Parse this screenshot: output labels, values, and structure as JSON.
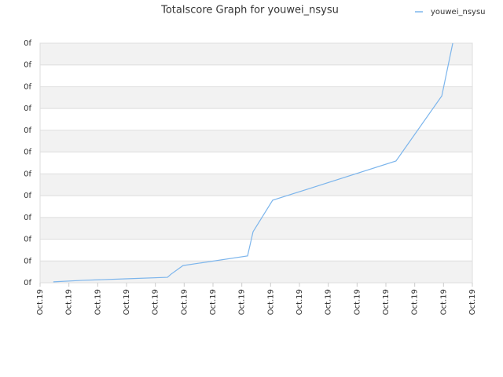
{
  "chart_data": {
    "type": "line",
    "title": "Totalscore Graph for youwei_nsysu",
    "legend_position": "top-right",
    "grid": true,
    "x": [
      0.46,
      1.47,
      2.97,
      4.42,
      4.55,
      4.96,
      7.2,
      7.39,
      8.07,
      12.35,
      13.94,
      14.32
    ],
    "series": [
      {
        "name": "youwei_nsysu",
        "color": "#7cb5ec",
        "values": [
          0.04,
          0.11,
          0.18,
          0.25,
          0.4,
          0.79,
          1.23,
          2.34,
          3.79,
          5.59,
          8.58,
          11.0
        ]
      }
    ],
    "xlim": [
      0,
      15
    ],
    "xticks": [
      {
        "value": 0,
        "label": "Oct.19"
      },
      {
        "value": 1,
        "label": "Oct.19"
      },
      {
        "value": 2,
        "label": "Oct.19"
      },
      {
        "value": 3,
        "label": "Oct.19"
      },
      {
        "value": 4,
        "label": "Oct.19"
      },
      {
        "value": 5,
        "label": "Oct.19"
      },
      {
        "value": 6,
        "label": "Oct.19"
      },
      {
        "value": 7,
        "label": "Oct.19"
      },
      {
        "value": 8,
        "label": "Oct.19"
      },
      {
        "value": 9,
        "label": "Oct.19"
      },
      {
        "value": 10,
        "label": "Oct.19"
      },
      {
        "value": 11,
        "label": "Oct.19"
      },
      {
        "value": 12,
        "label": "Oct.19"
      },
      {
        "value": 13,
        "label": "Oct.19"
      },
      {
        "value": 14,
        "label": "Oct.19"
      },
      {
        "value": 15,
        "label": "Oct.19"
      }
    ],
    "ylim": [
      0,
      11
    ],
    "yticks": [
      {
        "value": 0,
        "label": "0f"
      },
      {
        "value": 1,
        "label": "0f"
      },
      {
        "value": 2,
        "label": "0f"
      },
      {
        "value": 3,
        "label": "0f"
      },
      {
        "value": 4,
        "label": "0f"
      },
      {
        "value": 5,
        "label": "0f"
      },
      {
        "value": 6,
        "label": "0f"
      },
      {
        "value": 7,
        "label": "0f"
      },
      {
        "value": 8,
        "label": "0f"
      },
      {
        "value": 9,
        "label": "0f"
      },
      {
        "value": 10,
        "label": "0f"
      },
      {
        "value": 11,
        "label": "0f"
      }
    ]
  }
}
